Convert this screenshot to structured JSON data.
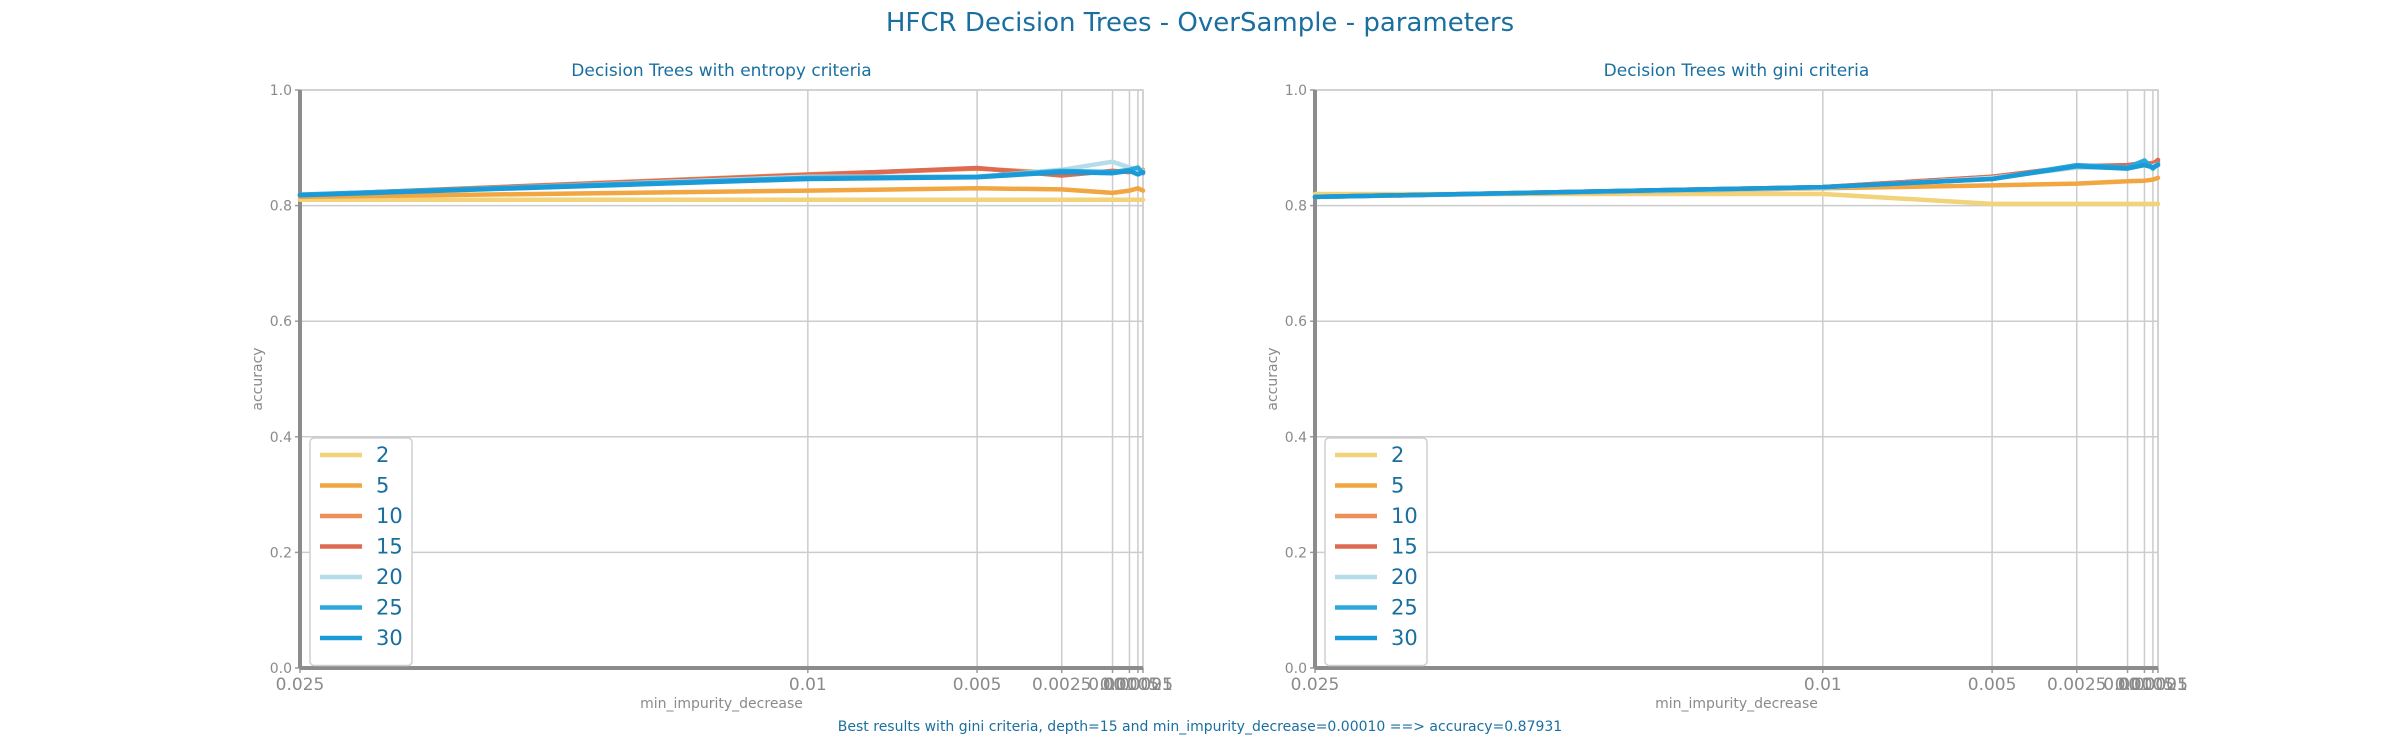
{
  "title": "HFCR Decision Trees - OverSample - parameters",
  "caption": "Best results with gini criteria, depth=15 and min_impurity_decrease=0.00010 ==> accuracy=0.87931",
  "chart_data": [
    {
      "type": "line",
      "title": "Decision Trees with entropy criteria",
      "xlabel": "min_impurity_decrease",
      "ylabel": "accuracy",
      "x": [
        0.025,
        0.01,
        0.005,
        0.0025,
        0.001,
        0.0005,
        0.00025,
        0.0001
      ],
      "xticklabels": [
        "0.025",
        "0.01",
        "0.005",
        "0.0025",
        "0.001",
        "0.0005",
        "0.00025",
        "0.0001"
      ],
      "xlim": [
        0.025,
        0.0001
      ],
      "ylim": [
        0.0,
        1.0
      ],
      "yticks": [
        0.0,
        0.2,
        0.4,
        0.6,
        0.8,
        1.0
      ],
      "yticklabels": [
        "0.0",
        "0.2",
        "0.4",
        "0.6",
        "0.8",
        "1.0"
      ],
      "grid": true,
      "legend_position": "lower-left",
      "series": [
        {
          "name": "2",
          "color": "#f2d27a",
          "values": [
            0.81,
            0.81,
            0.81,
            0.81,
            0.81,
            0.81,
            0.81,
            0.81
          ]
        },
        {
          "name": "5",
          "color": "#f2a641",
          "values": [
            0.815,
            0.826,
            0.83,
            0.828,
            0.822,
            0.826,
            0.83,
            0.826
          ]
        },
        {
          "name": "10",
          "color": "#ee9055",
          "values": [
            0.818,
            0.854,
            0.864,
            0.856,
            0.858,
            0.862,
            0.856,
            0.862
          ]
        },
        {
          "name": "15",
          "color": "#de6a52",
          "values": [
            0.818,
            0.853,
            0.865,
            0.852,
            0.86,
            0.858,
            0.864,
            0.858
          ]
        },
        {
          "name": "20",
          "color": "#b5dce9",
          "values": [
            0.818,
            0.85,
            0.85,
            0.862,
            0.876,
            0.866,
            0.862,
            0.86
          ]
        },
        {
          "name": "25",
          "color": "#2ca9dc",
          "values": [
            0.819,
            0.848,
            0.85,
            0.86,
            0.858,
            0.862,
            0.866,
            0.856
          ]
        },
        {
          "name": "30",
          "color": "#1a9ad6",
          "values": [
            0.818,
            0.846,
            0.849,
            0.858,
            0.856,
            0.86,
            0.854,
            0.858
          ]
        }
      ]
    },
    {
      "type": "line",
      "title": "Decision Trees with gini criteria",
      "xlabel": "min_impurity_decrease",
      "ylabel": "accuracy",
      "x": [
        0.025,
        0.01,
        0.005,
        0.0025,
        0.001,
        0.0005,
        0.00025,
        0.0001
      ],
      "xticklabels": [
        "0.025",
        "0.01",
        "0.005",
        "0.0025",
        "0.001",
        "0.0005",
        "0.00025",
        "0.0001"
      ],
      "xlim": [
        0.025,
        0.0001
      ],
      "ylim": [
        0.0,
        1.0
      ],
      "yticks": [
        0.0,
        0.2,
        0.4,
        0.6,
        0.8,
        1.0
      ],
      "yticklabels": [
        "0.0",
        "0.2",
        "0.4",
        "0.6",
        "0.8",
        "1.0"
      ],
      "grid": true,
      "legend_position": "lower-left",
      "series": [
        {
          "name": "2",
          "color": "#f2d27a",
          "values": [
            0.82,
            0.82,
            0.803,
            0.803,
            0.803,
            0.803,
            0.803,
            0.803
          ]
        },
        {
          "name": "5",
          "color": "#f2a641",
          "values": [
            0.815,
            0.83,
            0.835,
            0.838,
            0.842,
            0.843,
            0.845,
            0.848
          ]
        },
        {
          "name": "10",
          "color": "#ee9055",
          "values": [
            0.815,
            0.832,
            0.85,
            0.866,
            0.868,
            0.872,
            0.874,
            0.876
          ]
        },
        {
          "name": "15",
          "color": "#de6a52",
          "values": [
            0.815,
            0.832,
            0.85,
            0.868,
            0.87,
            0.874,
            0.872,
            0.879
          ]
        },
        {
          "name": "20",
          "color": "#b5dce9",
          "values": [
            0.815,
            0.831,
            0.848,
            0.866,
            0.866,
            0.87,
            0.868,
            0.872
          ]
        },
        {
          "name": "25",
          "color": "#2ca9dc",
          "values": [
            0.815,
            0.832,
            0.846,
            0.87,
            0.866,
            0.878,
            0.864,
            0.872
          ]
        },
        {
          "name": "30",
          "color": "#1a9ad6",
          "values": [
            0.815,
            0.832,
            0.846,
            0.868,
            0.864,
            0.87,
            0.866,
            0.87
          ]
        }
      ]
    }
  ]
}
